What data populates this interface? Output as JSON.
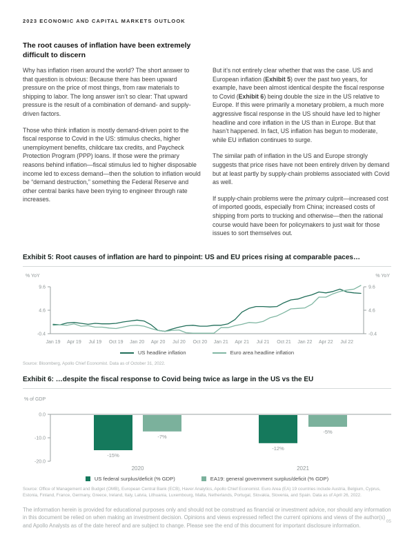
{
  "page": {
    "number": "05"
  },
  "header": {
    "title": "2023 ECONOMIC AND CAPITAL MARKETS OUTLOOK"
  },
  "article": {
    "heading": "The root causes of inflation have been extremely difficult to discern",
    "left_paragraphs": [
      [
        {
          "t": "Why has inflation risen around the world? The short answer to that question is obvious: Because there has been upward pressure on the price of most things, from raw materials to shipping to labor. The long answer isn’t so clear: That upward pressure is the result of a combination of demand- and supply-driven factors."
        }
      ],
      [
        {
          "t": "Those who think inflation is mostly demand-driven point to the fiscal response to Covid in the US: stimulus checks, higher unemployment benefits, childcare tax credits, and Paycheck Protection Program (PPP) loans. If those were the primary reasons behind inflation—fiscal stimulus led to higher disposable income led to excess demand—then the solution to inflation would be “demand destruction,” something the Federal Reserve and other central banks have been trying to engineer through rate increases."
        }
      ]
    ],
    "right_paragraphs": [
      [
        {
          "t": "But it’s not entirely clear whether that was the case. US and European inflation ("
        },
        {
          "t": "Exhibit 5",
          "b": true
        },
        {
          "t": ") over the past two years, for example, have been almost identical despite the fiscal response to Covid ("
        },
        {
          "t": "Exhibit 6",
          "b": true
        },
        {
          "t": ") being double the size in the US relative to Europe. If this were primarily a monetary problem, a much more aggressive fiscal response in the US should have led to higher headline and core inflation in the US than in Europe. But that hasn’t happened. In fact, US inflation has begun to moderate, while EU inflation continues to surge."
        }
      ],
      [
        {
          "t": "The similar path of inflation in the US and Europe strongly suggests that price rises have not been entirely driven by demand but at least partly by supply-chain problems associated with Covid as well."
        }
      ],
      [
        {
          "t": "If supply-chain problems were the "
        },
        {
          "t": "primary",
          "i": true
        },
        {
          "t": " culprit—increased cost of imported goods, especially from China; increased costs of shipping from ports to trucking and otherwise—then the rational course would have been for policymakers to just wait for those issues to sort themselves out."
        }
      ]
    ]
  },
  "exhibit5": {
    "title": "Exhibit 5: Root causes of inflation are hard to pinpoint: US and EU prices rising at comparable paces…",
    "axis_unit_left": "% YoY",
    "axis_unit_right": "% YoY",
    "source": "Source: Bloomberg, Apollo Chief Economist. Data as of October 31, 2022."
  },
  "exhibit6": {
    "title": "Exhibit 6: …despite the fiscal response to Covid being twice as large in the US vs the EU",
    "axis_unit": "% of GDP",
    "source": "Source: Office of Management and Budget (OMB), European Central Bank (ECB), Haver Analytics, Apollo Chief Economist. Euro Area (EA) 19 countries include Austria, Belgium, Cyprus, Estonia, Finland, France, Germany, Greece, Ireland, Italy, Latvia, Lithuania, Luxembourg, Malta, Netherlands, Portugal, Slovakia, Slovenia, and Spain. Data as of April 26, 2022."
  },
  "disclaimer": "The information herein is provided for educational purposes only and should not be construed as financial or investment advice, nor should any information in this document be relied on when making an investment decision. Opinions and views expressed reflect the current opinions and views of the author(s) and Apollo Analysts as of the date hereof and are subject to change. Please see the end of this document for important disclosure information.",
  "chart_data": [
    {
      "type": "line",
      "title": "Exhibit 5: Root causes of inflation are hard to pinpoint: US and EU prices rising at comparable paces…",
      "ylabel": "% YoY",
      "yticks": [
        9.6,
        4.6,
        -0.4
      ],
      "ylim": [
        -0.4,
        9.9
      ],
      "x_months": "Jan 2019 through Sep 2022, monthly",
      "xticks": [
        "Jan 19",
        "Apr 19",
        "Jul 19",
        "Oct 19",
        "Jan 20",
        "Apr 20",
        "Jul 20",
        "Oct 20",
        "Jan 21",
        "Apr 21",
        "Jul 21",
        "Oct 21",
        "Jan 22",
        "Apr 22",
        "Jul 22"
      ],
      "xtick_indices": [
        0,
        3,
        6,
        9,
        12,
        15,
        18,
        21,
        24,
        27,
        30,
        33,
        36,
        39,
        42
      ],
      "legend_position": "bottom",
      "series": [
        {
          "name": "US headline inflation",
          "color": "#1f6d58",
          "values": [
            1.6,
            1.5,
            1.9,
            2.0,
            1.8,
            1.6,
            1.8,
            1.7,
            1.7,
            1.8,
            2.1,
            2.3,
            2.5,
            2.3,
            1.5,
            0.3,
            0.1,
            0.6,
            1.0,
            1.3,
            1.4,
            1.2,
            1.2,
            1.4,
            1.4,
            1.7,
            2.6,
            4.2,
            5.0,
            5.4,
            5.4,
            5.3,
            5.4,
            6.2,
            6.8,
            7.0,
            7.5,
            7.9,
            8.5,
            8.3,
            8.6,
            9.1,
            8.5,
            8.3,
            8.2
          ]
        },
        {
          "name": "Euro area headline inflation",
          "color": "#7fb6a2",
          "values": [
            1.4,
            1.5,
            1.4,
            1.7,
            1.2,
            1.3,
            1.0,
            1.0,
            0.8,
            0.7,
            1.0,
            1.3,
            1.4,
            1.2,
            0.7,
            0.3,
            0.1,
            0.3,
            0.4,
            -0.2,
            -0.3,
            -0.3,
            -0.3,
            -0.3,
            0.9,
            0.9,
            1.3,
            1.6,
            2.0,
            1.9,
            2.2,
            3.0,
            3.4,
            4.1,
            4.9,
            5.0,
            5.1,
            5.9,
            7.4,
            7.4,
            8.1,
            8.6,
            8.9,
            9.1,
            9.9
          ]
        }
      ]
    },
    {
      "type": "bar",
      "title": "Exhibit 6: …despite the fiscal response to Covid being twice as large in the US vs the EU",
      "ylabel": "% of GDP",
      "yticks": [
        0.0,
        -10.0,
        -20.0
      ],
      "ytick_labels": [
        "0.0",
        "-10.0",
        "-20.0"
      ],
      "ylim": [
        -20,
        0
      ],
      "categories": [
        "2020",
        "2021"
      ],
      "legend_position": "bottom",
      "series": [
        {
          "name": "US federal surplus/deficit (% GDP)",
          "color": "#15795c",
          "values": [
            -15,
            -12
          ],
          "labels": [
            "-15%",
            "-12%"
          ]
        },
        {
          "name": "EA19: general government surplus/deficit (% GDP)",
          "color": "#7bb19c",
          "values": [
            -7,
            -5
          ],
          "labels": [
            "-7%",
            "-5%"
          ]
        }
      ]
    }
  ]
}
